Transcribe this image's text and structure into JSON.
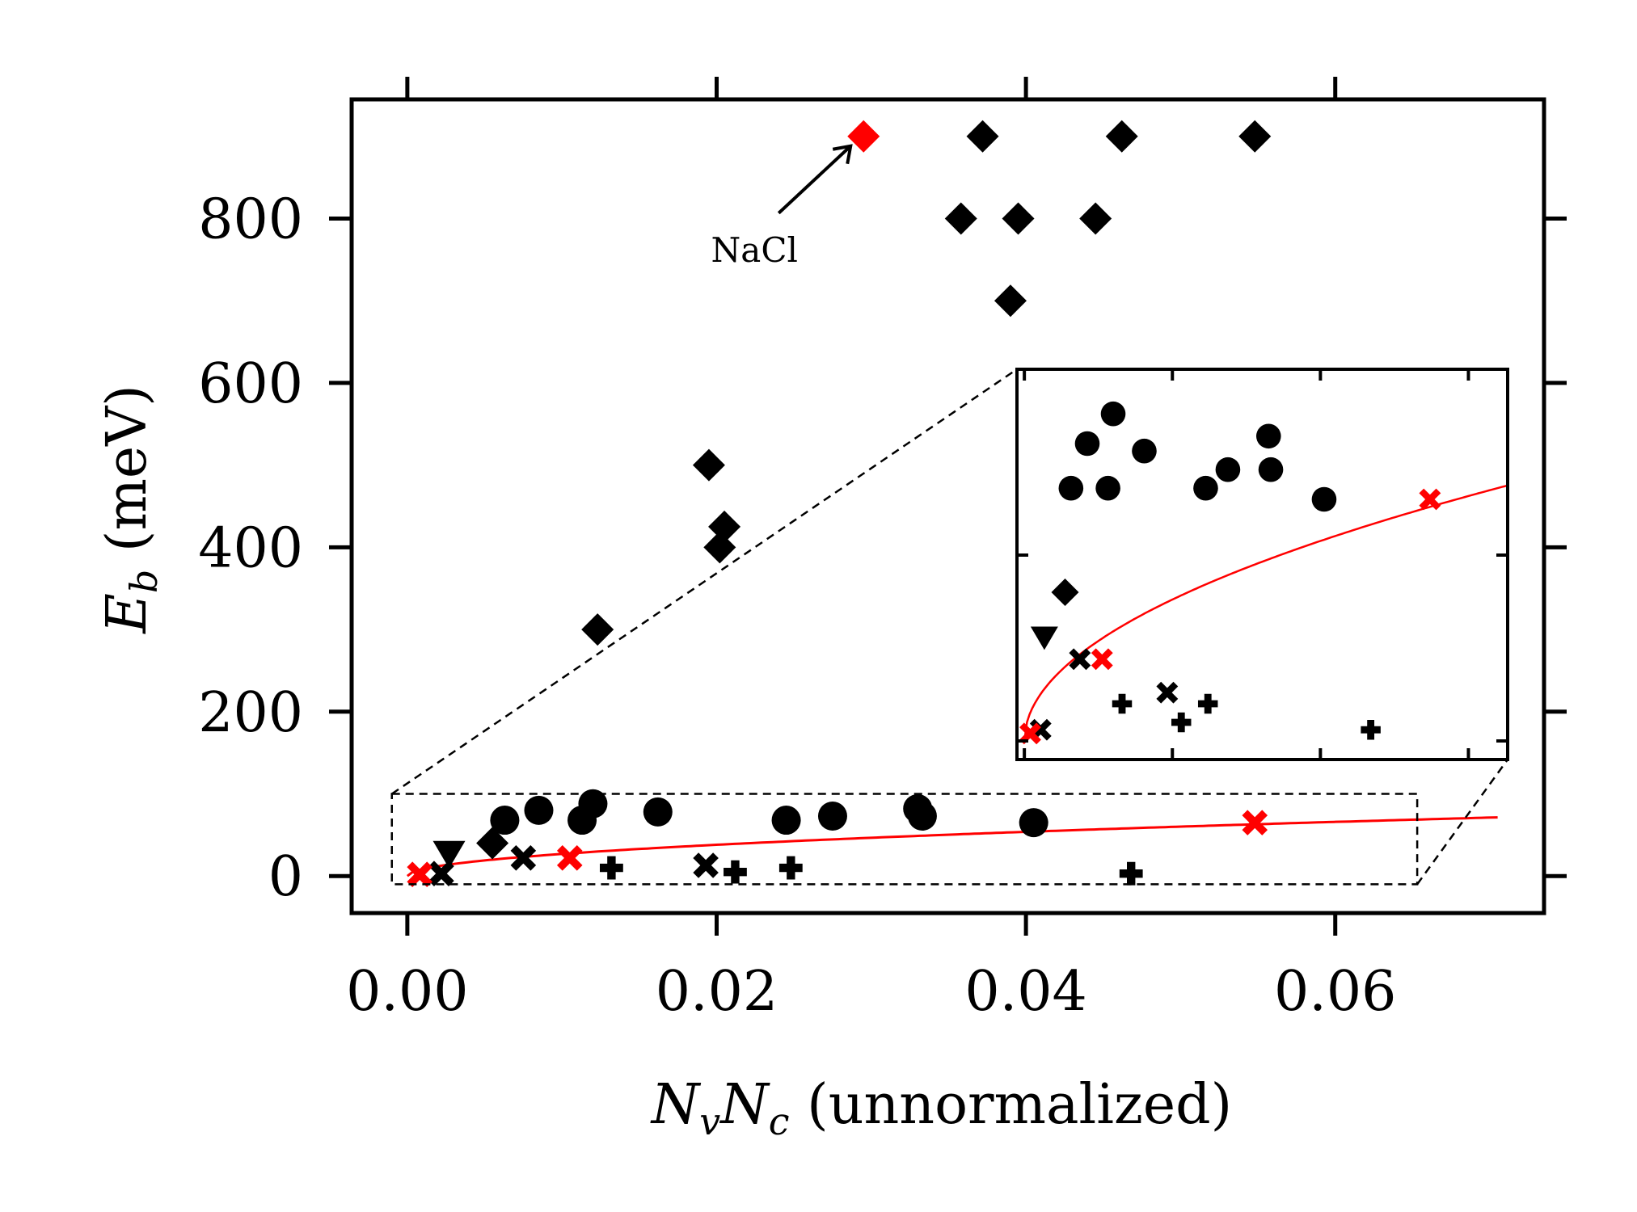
{
  "chart_data": {
    "type": "scatter",
    "title": "",
    "xlabel": {
      "main": "N",
      "sub1": "v",
      "mid": "N",
      "sub2": "c",
      "suffix": " (unnormalized)"
    },
    "ylabel": {
      "main": "E",
      "sub": "b",
      "suffix": " (meV)"
    },
    "xlim": [
      -0.0036,
      0.0735
    ],
    "ylim": [
      -45,
      945
    ],
    "x_ticks": [
      0.0,
      0.02,
      0.04,
      0.06
    ],
    "x_tick_labels": [
      "0.00",
      "0.02",
      "0.04",
      "0.06"
    ],
    "y_ticks": [
      0,
      200,
      400,
      600,
      800
    ],
    "y_tick_labels": [
      "0",
      "200",
      "400",
      "600",
      "800"
    ],
    "colors": {
      "default": "#000000",
      "highlight": "#ff0000",
      "fit": "#ff0000"
    },
    "series": [
      {
        "marker": "diamond",
        "color": "#000000",
        "points": [
          [
            0.0055,
            40
          ],
          [
            0.0123,
            300
          ],
          [
            0.0195,
            500
          ],
          [
            0.0205,
            425
          ],
          [
            0.0202,
            400
          ],
          [
            0.0358,
            800
          ],
          [
            0.0372,
            900
          ],
          [
            0.0395,
            800
          ],
          [
            0.039,
            700
          ],
          [
            0.0445,
            800
          ],
          [
            0.0462,
            900
          ],
          [
            0.0548,
            900
          ]
        ]
      },
      {
        "marker": "diamond",
        "color": "#ff0000",
        "points": [
          [
            0.0295,
            900
          ]
        ]
      },
      {
        "marker": "circle",
        "color": "#000000",
        "points": [
          [
            0.0063,
            68
          ],
          [
            0.0085,
            80
          ],
          [
            0.0113,
            68
          ],
          [
            0.012,
            88
          ],
          [
            0.0162,
            78
          ],
          [
            0.0245,
            68
          ],
          [
            0.0275,
            73
          ],
          [
            0.033,
            82
          ],
          [
            0.0333,
            73
          ],
          [
            0.0405,
            65
          ]
        ]
      },
      {
        "marker": "triangle-down",
        "color": "#000000",
        "points": [
          [
            0.0027,
            28
          ]
        ]
      },
      {
        "marker": "x",
        "color": "#000000",
        "points": [
          [
            0.0022,
            3
          ],
          [
            0.0075,
            22
          ],
          [
            0.0193,
            13
          ]
        ]
      },
      {
        "marker": "x",
        "color": "#ff0000",
        "points": [
          [
            0.0008,
            2
          ],
          [
            0.0105,
            22
          ],
          [
            0.0548,
            65
          ]
        ]
      },
      {
        "marker": "plus",
        "color": "#000000",
        "points": [
          [
            0.0132,
            10
          ],
          [
            0.0212,
            5
          ],
          [
            0.0248,
            10
          ],
          [
            0.0468,
            3
          ]
        ]
      }
    ],
    "fit_curve": {
      "color": "#ff0000",
      "formula": "y = 269 * sqrt(x)",
      "x_range": [
        0.0,
        0.0705
      ]
    },
    "inset": {
      "region_x": [
        -0.001,
        0.0653
      ],
      "region_y": [
        -10,
        100
      ],
      "ylim": [
        -5,
        100
      ],
      "y_ticks": [
        0,
        50
      ]
    },
    "annotations": [
      {
        "text": "NaCl",
        "target": [
          0.0295,
          900
        ]
      }
    ]
  }
}
